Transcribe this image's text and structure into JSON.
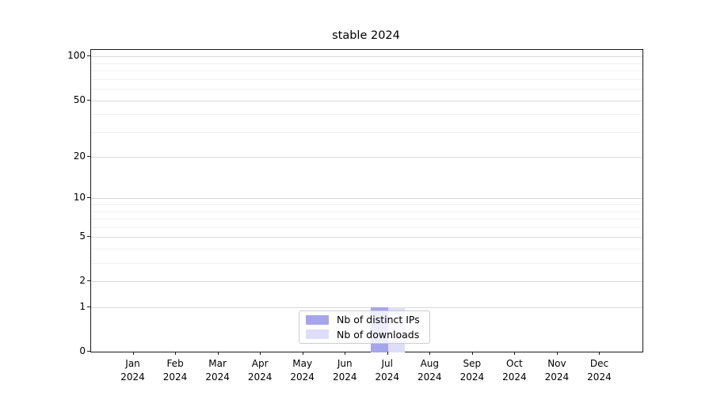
{
  "chart_data": {
    "type": "bar",
    "title": "stable 2024",
    "x": {
      "categories": [
        "Jan",
        "Feb",
        "Mar",
        "Apr",
        "May",
        "Jun",
        "Jul",
        "Aug",
        "Sep",
        "Oct",
        "Nov",
        "Dec"
      ],
      "year_label": "2024"
    },
    "y": {
      "scale": "log1p",
      "ticks": [
        0,
        1,
        2,
        5,
        10,
        20,
        50,
        100
      ],
      "minor_ticks": [
        3,
        4,
        6,
        7,
        8,
        9,
        30,
        40,
        60,
        70,
        80,
        90
      ],
      "ylim": [
        0,
        110
      ],
      "grid": true
    },
    "series": [
      {
        "name": "Nb of distinct IPs",
        "color": "#a5a5ec",
        "values": [
          0,
          0,
          0,
          0,
          0,
          0,
          1,
          0,
          0,
          0,
          0,
          0
        ]
      },
      {
        "name": "Nb of downloads",
        "color": "#dedef8",
        "values": [
          0,
          0,
          0,
          0,
          0,
          0,
          1,
          0,
          0,
          0,
          0,
          0
        ]
      }
    ],
    "legend": {
      "position": "bottom-center",
      "entries": [
        "Nb of distinct IPs",
        "Nb of downloads"
      ]
    },
    "colors": {
      "major_grid": "#d9d9d9",
      "minor_grid": "#f1f1f1",
      "spine": "#1a1a1a",
      "text": "#000000"
    }
  }
}
